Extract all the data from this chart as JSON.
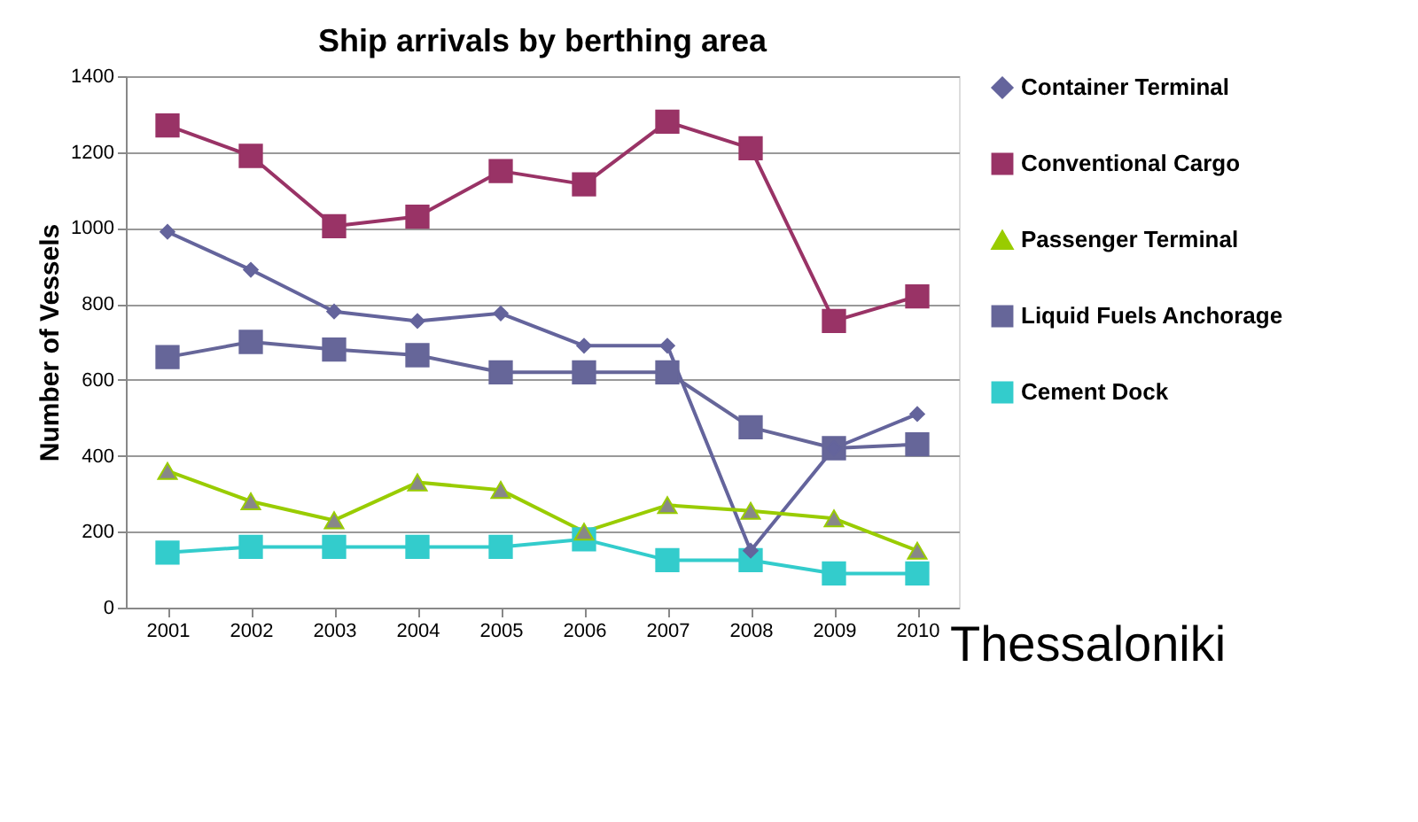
{
  "chart_data": {
    "type": "line",
    "title": "Ship arrivals by berthing area",
    "ylabel": "Number of Vessels",
    "categories": [
      "2001",
      "2002",
      "2003",
      "2004",
      "2005",
      "2006",
      "2007",
      "2008",
      "2009",
      "2010"
    ],
    "series": [
      {
        "name": "Container Terminal",
        "color": "#64649c",
        "marker": "diamond",
        "values": [
          990,
          890,
          780,
          755,
          775,
          690,
          690,
          150,
          420,
          510
        ]
      },
      {
        "name": "Conventional Cargo",
        "color": "#993366",
        "marker": "square",
        "values": [
          1270,
          1190,
          1005,
          1030,
          1150,
          1115,
          1280,
          1210,
          755,
          820
        ]
      },
      {
        "name": "Passenger Terminal",
        "color": "#99cc00",
        "marker": "triangle",
        "values": [
          360,
          280,
          230,
          330,
          310,
          200,
          270,
          255,
          235,
          150
        ]
      },
      {
        "name": "Liquid Fuels Anchorage",
        "color": "#666699",
        "marker": "square",
        "values": [
          660,
          700,
          680,
          665,
          620,
          620,
          620,
          475,
          420,
          430
        ]
      },
      {
        "name": "Cement Dock",
        "color": "#33cccc",
        "marker": "square",
        "values": [
          145,
          160,
          160,
          160,
          160,
          180,
          125,
          125,
          90,
          90
        ]
      }
    ],
    "ylim": [
      0,
      1400
    ],
    "yticks": [
      0,
      200,
      400,
      600,
      800,
      1000,
      1200,
      1400
    ],
    "grid": "y",
    "legend": "right",
    "annotations": [
      "Thessaloniki"
    ]
  }
}
